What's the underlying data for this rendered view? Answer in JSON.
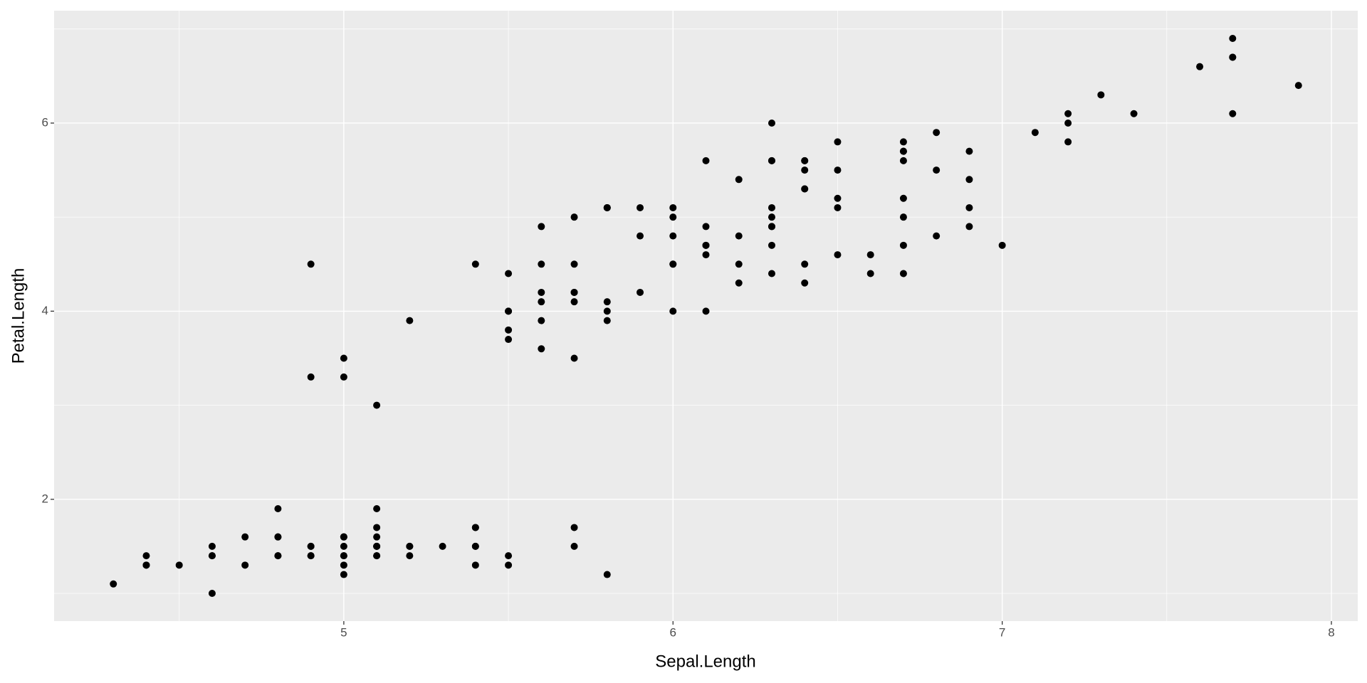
{
  "chart_data": {
    "type": "scatter",
    "x_label": "Sepal.Length",
    "y_label": "Petal.Length",
    "color": "#000000",
    "grid": true,
    "xlim": [
      4.12,
      8.08
    ],
    "ylim": [
      0.705,
      7.195
    ],
    "xticks": [
      5,
      6,
      7,
      8
    ],
    "yticks": [
      2,
      4,
      6
    ],
    "xminor": [
      4.5,
      5.5,
      6.5,
      7.5
    ],
    "yminor": [
      1,
      3,
      5,
      7
    ],
    "x": [
      5.1,
      4.9,
      4.7,
      4.6,
      5.0,
      5.4,
      4.6,
      5.0,
      4.4,
      4.9,
      5.4,
      4.8,
      4.8,
      4.3,
      5.8,
      5.7,
      5.4,
      5.1,
      5.7,
      5.1,
      5.4,
      5.1,
      4.6,
      5.1,
      4.8,
      5.0,
      5.0,
      5.2,
      5.2,
      4.7,
      4.8,
      5.4,
      5.2,
      5.5,
      4.9,
      5.0,
      5.5,
      4.9,
      4.4,
      5.1,
      5.0,
      4.5,
      4.4,
      5.0,
      5.1,
      4.8,
      5.1,
      4.6,
      5.3,
      5.0,
      7.0,
      6.4,
      6.9,
      5.5,
      6.5,
      5.7,
      6.3,
      4.9,
      6.6,
      5.2,
      5.0,
      5.9,
      6.0,
      6.1,
      5.6,
      6.7,
      5.6,
      5.8,
      6.2,
      5.6,
      5.9,
      6.1,
      6.3,
      6.1,
      6.4,
      6.6,
      6.8,
      6.7,
      6.0,
      5.7,
      5.5,
      5.5,
      5.8,
      6.0,
      5.4,
      6.0,
      6.7,
      6.3,
      5.6,
      5.5,
      5.5,
      6.1,
      5.8,
      5.0,
      5.6,
      5.7,
      5.7,
      6.2,
      5.1,
      5.7,
      6.3,
      5.8,
      7.1,
      6.3,
      6.5,
      7.6,
      4.9,
      7.3,
      6.7,
      7.2,
      6.5,
      6.4,
      6.8,
      5.7,
      5.8,
      6.4,
      6.5,
      7.7,
      7.7,
      6.0,
      6.9,
      5.6,
      7.7,
      6.3,
      6.7,
      7.2,
      6.2,
      6.1,
      6.4,
      7.2,
      7.4,
      7.9,
      6.4,
      6.3,
      6.1,
      7.7,
      6.3,
      6.4,
      6.0,
      6.9,
      6.7,
      6.9,
      5.8,
      6.8,
      6.7,
      6.7,
      6.3,
      6.5,
      6.2,
      5.9
    ],
    "values": [
      1.4,
      1.4,
      1.3,
      1.5,
      1.4,
      1.7,
      1.4,
      1.5,
      1.4,
      1.5,
      1.5,
      1.6,
      1.4,
      1.1,
      1.2,
      1.5,
      1.3,
      1.4,
      1.7,
      1.5,
      1.7,
      1.5,
      1.0,
      1.7,
      1.9,
      1.6,
      1.6,
      1.5,
      1.4,
      1.6,
      1.6,
      1.5,
      1.5,
      1.4,
      1.5,
      1.2,
      1.3,
      1.4,
      1.3,
      1.5,
      1.3,
      1.3,
      1.3,
      1.6,
      1.9,
      1.4,
      1.6,
      1.4,
      1.5,
      1.4,
      4.7,
      4.5,
      4.9,
      4.0,
      4.6,
      4.5,
      4.7,
      3.3,
      4.6,
      3.9,
      3.5,
      4.2,
      4.0,
      4.7,
      3.6,
      4.4,
      4.5,
      4.1,
      4.5,
      3.9,
      4.8,
      4.0,
      4.9,
      4.7,
      4.3,
      4.4,
      4.8,
      5.0,
      4.5,
      3.5,
      3.8,
      3.7,
      3.9,
      5.1,
      4.5,
      4.5,
      4.7,
      4.4,
      4.1,
      4.0,
      4.4,
      4.6,
      4.0,
      3.3,
      4.2,
      4.2,
      4.2,
      4.3,
      3.0,
      4.1,
      6.0,
      5.1,
      5.9,
      5.6,
      5.8,
      6.6,
      4.5,
      6.3,
      5.8,
      6.1,
      5.1,
      5.3,
      5.5,
      5.0,
      5.1,
      5.3,
      5.5,
      6.7,
      6.9,
      5.0,
      5.7,
      4.9,
      6.7,
      4.9,
      5.7,
      6.0,
      4.8,
      4.9,
      5.6,
      5.8,
      6.1,
      6.4,
      5.6,
      5.1,
      5.6,
      6.1,
      5.6,
      5.5,
      4.8,
      5.4,
      5.6,
      5.1,
      5.1,
      5.9,
      5.7,
      5.2,
      5.0,
      5.2,
      5.4,
      5.1
    ]
  }
}
